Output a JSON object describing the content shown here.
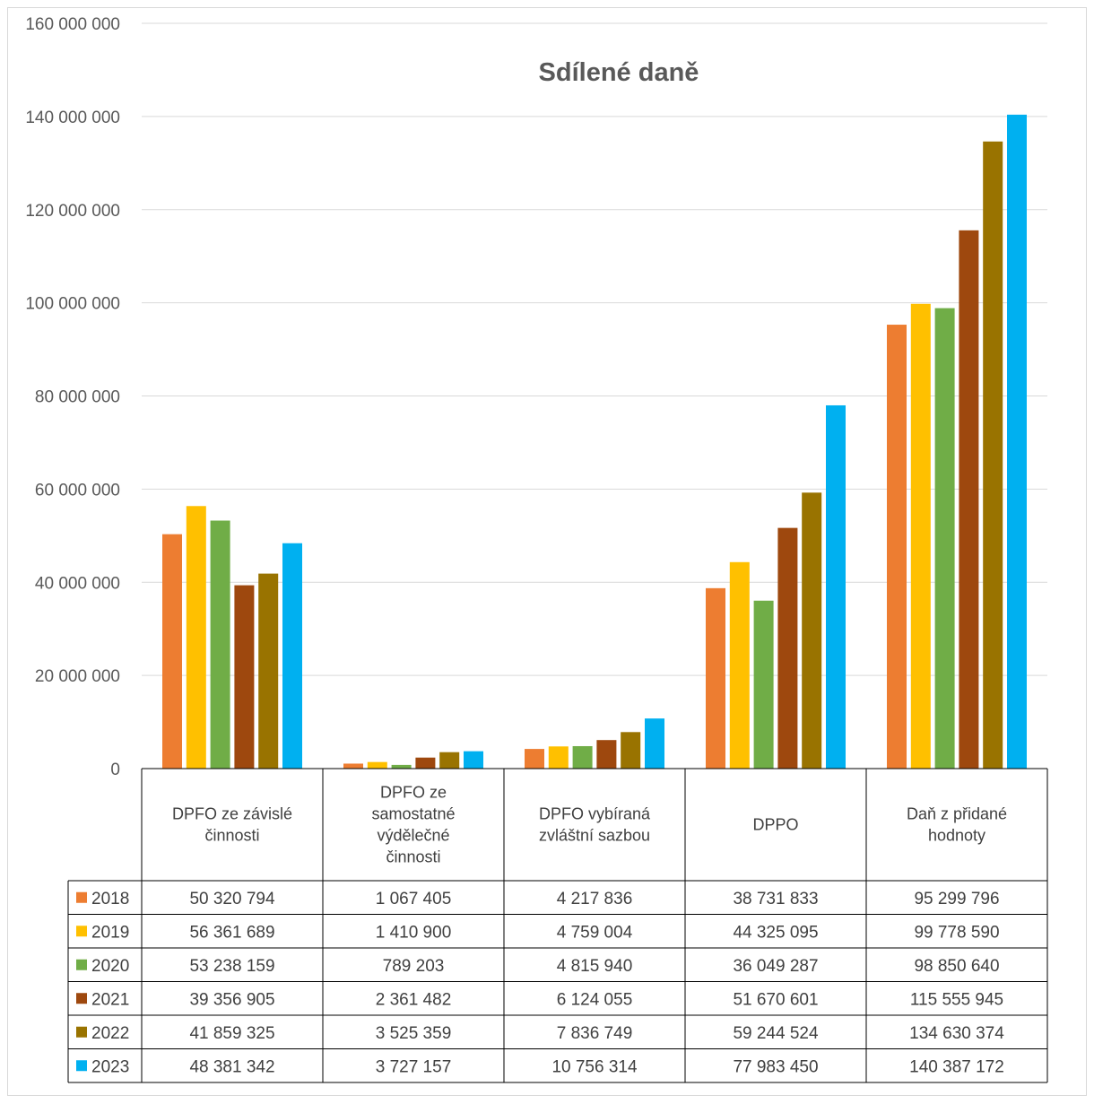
{
  "chart_data": {
    "type": "bar",
    "title": "Sdílené daně",
    "ylim": [
      0,
      160000000
    ],
    "ytick_values": [
      0,
      20000000,
      40000000,
      60000000,
      80000000,
      100000000,
      120000000,
      140000000,
      160000000
    ],
    "ytick_labels": [
      "0",
      "20 000 000",
      "40 000 000",
      "60 000 000",
      "80 000 000",
      "100 000 000",
      "120 000 000",
      "140 000 000",
      "160 000 000"
    ],
    "grid": true,
    "legend": "data-table",
    "categories": [
      [
        "DPFO ze závislé",
        "činnosti"
      ],
      [
        "DPFO ze",
        "samostatné",
        "výdělečné",
        "činnosti"
      ],
      [
        "DPFO vybíraná",
        "zvláštní sazbou"
      ],
      [
        "DPPO"
      ],
      [
        "Daň z přidané",
        "hodnoty"
      ]
    ],
    "series": [
      {
        "name": "2018",
        "color": "#ED7D31",
        "values": [
          50320794,
          1067405,
          4217836,
          38731833,
          95299796
        ],
        "labels": [
          "50 320 794",
          "1 067 405",
          "4 217 836",
          "38 731 833",
          "95 299 796"
        ]
      },
      {
        "name": "2019",
        "color": "#FFC000",
        "values": [
          56361689,
          1410900,
          4759004,
          44325095,
          99778590
        ],
        "labels": [
          "56 361 689",
          "1 410 900",
          "4 759 004",
          "44 325 095",
          "99 778 590"
        ]
      },
      {
        "name": "2020",
        "color": "#70AD47",
        "values": [
          53238159,
          789203,
          4815940,
          36049287,
          98850640
        ],
        "labels": [
          "53 238 159",
          "789 203",
          "4 815 940",
          "36 049 287",
          "98 850 640"
        ]
      },
      {
        "name": "2021",
        "color": "#9E480E",
        "values": [
          39356905,
          2361482,
          6124055,
          51670601,
          115555945
        ],
        "labels": [
          "39 356 905",
          "2 361 482",
          "6 124 055",
          "51 670 601",
          "115 555 945"
        ]
      },
      {
        "name": "2022",
        "color": "#997300",
        "values": [
          41859325,
          3525359,
          7836749,
          59244524,
          134630374
        ],
        "labels": [
          "41 859 325",
          "3 525 359",
          "7 836 749",
          "59 244 524",
          "134 630 374"
        ]
      },
      {
        "name": "2023",
        "color": "#00B0F0",
        "values": [
          48381342,
          3727157,
          10756314,
          77983450,
          140387172
        ],
        "labels": [
          "48 381 342",
          "3 727 157",
          "10 756 314",
          "77 983 450",
          "140 387 172"
        ]
      }
    ]
  }
}
